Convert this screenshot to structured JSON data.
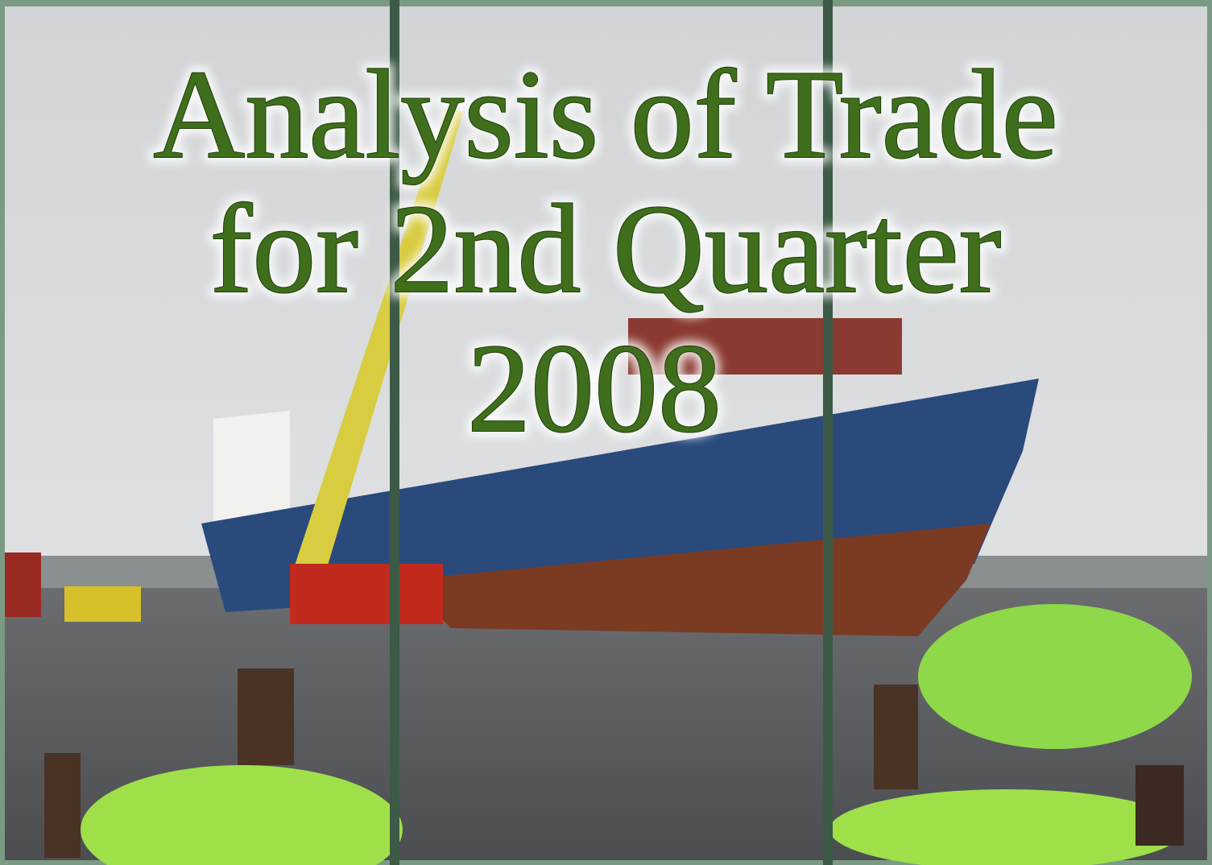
{
  "title": {
    "lines": [
      "Analysis of Trade",
      "for 2nd Quarter",
      "2008"
    ]
  }
}
